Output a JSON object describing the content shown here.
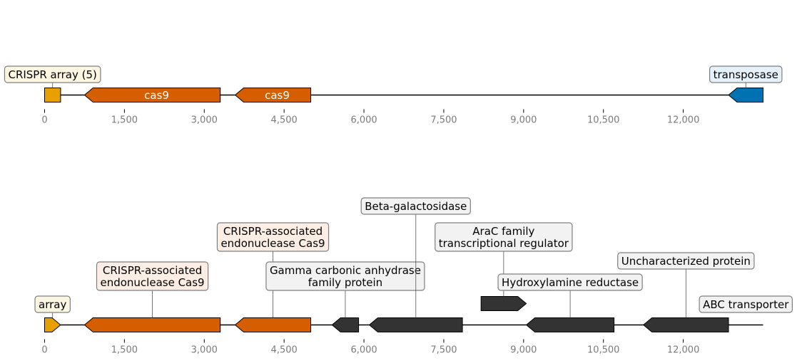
{
  "colors": {
    "crispr_array": "#e8a000",
    "cas9": "#d55e00",
    "transposase": "#0072b2",
    "other": "#333333",
    "label_fill_crispr": "#fdf6e3",
    "label_fill_cas9": "#fdeee5",
    "label_fill_transposase": "#e6f2fb",
    "label_fill_other": "#f2f2f2",
    "label_stroke": "#7f7f7f",
    "backbone": "#000000",
    "tick_text": "#7a7a7a"
  },
  "tracks": [
    {
      "name": "track-1",
      "axis": {
        "min": 0,
        "max": 13500,
        "ticks": [
          0,
          1500,
          3000,
          4500,
          6000,
          7500,
          9000,
          10500,
          12000
        ]
      },
      "features": [
        {
          "name": "crispr-array",
          "start": 0,
          "end": 300,
          "strand": 0,
          "color_key": "crispr_array",
          "label": "CRISPR array (5)",
          "label_mode": "box",
          "label_lines": [
            "CRISPR array (5)"
          ],
          "label_fill_key": "label_fill_crispr"
        },
        {
          "name": "cas9-1",
          "start": 750,
          "end": 3300,
          "strand": -1,
          "color_key": "cas9",
          "label": "cas9",
          "label_mode": "inside"
        },
        {
          "name": "cas9-2",
          "start": 3580,
          "end": 5000,
          "strand": -1,
          "color_key": "cas9",
          "label": "cas9",
          "label_mode": "inside"
        },
        {
          "name": "transposase",
          "start": 12850,
          "end": 13500,
          "strand": -1,
          "color_key": "transposase",
          "label": "transposase",
          "label_mode": "box",
          "label_lines": [
            "transposase"
          ],
          "label_fill_key": "label_fill_transposase"
        }
      ]
    },
    {
      "name": "track-2",
      "axis": {
        "min": 0,
        "max": 13500,
        "ticks": [
          0,
          1500,
          3000,
          4500,
          6000,
          7500,
          9000,
          10500,
          12000
        ]
      },
      "features": [
        {
          "name": "array",
          "start": 0,
          "end": 300,
          "strand": 1,
          "color_key": "crispr_array",
          "label": "array",
          "label_mode": "box",
          "label_lines": [
            "array"
          ],
          "label_fill_key": "label_fill_crispr",
          "label_level": 0
        },
        {
          "name": "cas9-endonuclease-1",
          "start": 750,
          "end": 3300,
          "strand": -1,
          "color_key": "cas9",
          "label": "CRISPR-associated endonuclease Cas9",
          "label_mode": "box",
          "label_lines": [
            "CRISPR-associated",
            "endonuclease Cas9"
          ],
          "label_fill_key": "label_fill_cas9",
          "label_level": 1
        },
        {
          "name": "cas9-endonuclease-2",
          "start": 3580,
          "end": 5000,
          "strand": -1,
          "color_key": "cas9",
          "label": "CRISPR-associated endonuclease Cas9",
          "label_mode": "box",
          "label_lines": [
            "CRISPR-associated",
            "endonuclease Cas9"
          ],
          "label_fill_key": "label_fill_cas9",
          "label_level": 3
        },
        {
          "name": "gamma-carbonic-anhydrase",
          "start": 5400,
          "end": 5900,
          "strand": -1,
          "color_key": "other",
          "label": "Gamma carbonic anhydrase family protein",
          "label_mode": "box",
          "label_lines": [
            "Gamma carbonic anhydrase",
            "family protein"
          ],
          "label_fill_key": "label_fill_other",
          "label_level": 1
        },
        {
          "name": "beta-galactosidase",
          "start": 6100,
          "end": 7850,
          "strand": -1,
          "color_key": "other",
          "label": "Beta-galactosidase",
          "label_mode": "box",
          "label_lines": [
            "Beta-galactosidase"
          ],
          "label_fill_key": "label_fill_other",
          "label_level": 5
        },
        {
          "name": "arac-regulator",
          "start": 8200,
          "end": 9050,
          "strand": 1,
          "color_key": "other",
          "label": "AraC family transcriptional regulator",
          "label_mode": "box",
          "label_lines": [
            "AraC family",
            "transcriptional regulator"
          ],
          "label_fill_key": "label_fill_other",
          "label_level": 3,
          "elevated": true
        },
        {
          "name": "hydroxylamine-reductase",
          "start": 9050,
          "end": 10700,
          "strand": -1,
          "color_key": "other",
          "label": "Hydroxylamine reductase",
          "label_mode": "box",
          "label_lines": [
            "Hydroxylamine reductase"
          ],
          "label_fill_key": "label_fill_other",
          "label_level": 1
        },
        {
          "name": "uncharacterized-protein",
          "start": 11250,
          "end": 12850,
          "strand": -1,
          "color_key": "other",
          "label": "Uncharacterized protein",
          "label_mode": "box",
          "label_lines": [
            "Uncharacterized protein"
          ],
          "label_fill_key": "label_fill_other",
          "label_level": 2
        },
        {
          "name": "abc-transporter",
          "start": 12850,
          "end": 13500,
          "strand": -1,
          "color_key": "other",
          "label": "ABC transporter",
          "label_mode": "box",
          "label_lines": [
            "ABC transporter"
          ],
          "label_fill_key": "label_fill_other",
          "label_level": 0,
          "elevated": true
        }
      ]
    }
  ]
}
